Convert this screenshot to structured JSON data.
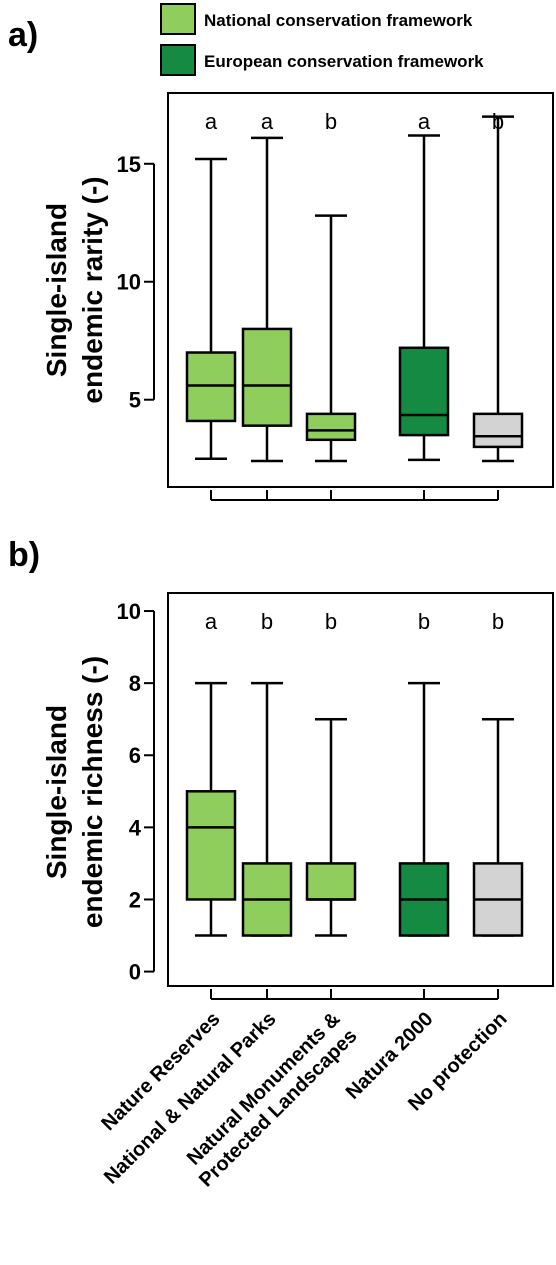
{
  "legend": {
    "national_label": "National conservation framework",
    "european_label": "European conservation framework",
    "national_color": "#8fcd5c",
    "european_color": "#148a42",
    "none_color": "#d3d3d3"
  },
  "categories": [
    "Nature Reserves",
    "National & Natural Parks",
    "Natural Monuments & Protected Landscapes",
    "Natura 2000",
    "No protection"
  ],
  "category_label_lines": [
    [
      "Nature Reserves"
    ],
    [
      "National & Natural Parks"
    ],
    [
      "Natural Monuments &",
      "Protected Landscapes"
    ],
    [
      "Natura 2000"
    ],
    [
      "No protection"
    ]
  ],
  "chart_data": [
    {
      "panel": "a)",
      "type": "boxplot",
      "ylabel_lines": [
        "Single-island",
        "endemic rarity (-)"
      ],
      "ylim": [
        1.3,
        18.0
      ],
      "yticks": [
        5,
        10,
        15
      ],
      "grid": false,
      "groups": [
        {
          "category": "Nature Reserves",
          "framework": "national",
          "min": 2.5,
          "q1": 4.1,
          "median": 5.6,
          "q3": 7.0,
          "max": 15.2,
          "letter": "a"
        },
        {
          "category": "National & Natural Parks",
          "framework": "national",
          "min": 2.4,
          "q1": 3.9,
          "median": 5.6,
          "q3": 8.0,
          "max": 16.1,
          "letter": "a"
        },
        {
          "category": "Natural Monuments & Protected Landscapes",
          "framework": "national",
          "min": 2.4,
          "q1": 3.3,
          "median": 3.7,
          "q3": 4.4,
          "max": 12.8,
          "letter": "b"
        },
        {
          "category": "Natura 2000",
          "framework": "european",
          "min": 2.45,
          "q1": 3.5,
          "median": 4.35,
          "q3": 7.2,
          "max": 16.2,
          "letter": "a"
        },
        {
          "category": "No protection",
          "framework": "none",
          "min": 2.4,
          "q1": 3.0,
          "median": 3.45,
          "q3": 4.4,
          "max": 17.0,
          "letter": "b"
        }
      ]
    },
    {
      "panel": "b)",
      "type": "boxplot",
      "ylabel_lines": [
        "Single-island",
        "endemic richness (-)"
      ],
      "ylim": [
        -0.4,
        10.5
      ],
      "yticks": [
        0,
        2,
        4,
        6,
        8,
        10
      ],
      "grid": false,
      "groups": [
        {
          "category": "Nature Reserves",
          "framework": "national",
          "min": 1,
          "q1": 2,
          "median": 4,
          "q3": 5,
          "max": 8,
          "letter": "a"
        },
        {
          "category": "National & Natural Parks",
          "framework": "national",
          "min": 1,
          "q1": 1,
          "median": 2,
          "q3": 3,
          "max": 8,
          "letter": "b"
        },
        {
          "category": "Natural Monuments & Protected Landscapes",
          "framework": "national",
          "min": 1,
          "q1": 2,
          "median": 2,
          "q3": 3,
          "max": 7,
          "letter": "b"
        },
        {
          "category": "Natura 2000",
          "framework": "european",
          "min": 1,
          "q1": 1,
          "median": 2,
          "q3": 3,
          "max": 8,
          "letter": "b"
        },
        {
          "category": "No protection",
          "framework": "none",
          "min": 1,
          "q1": 1,
          "median": 2,
          "q3": 3,
          "max": 7,
          "letter": "b"
        }
      ]
    }
  ]
}
